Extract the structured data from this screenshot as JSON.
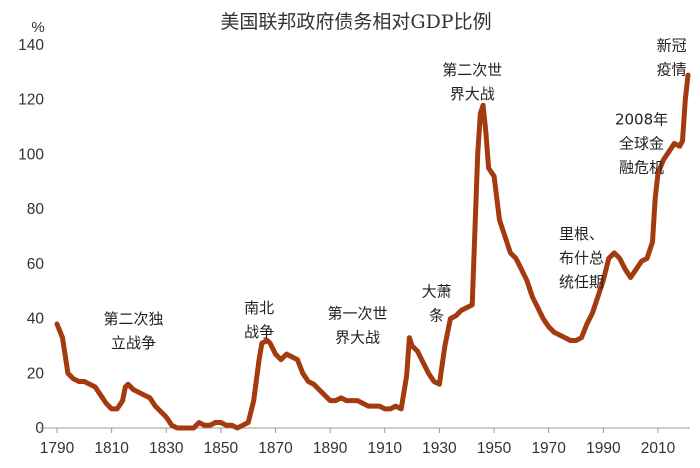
{
  "chart_data": {
    "type": "line",
    "title": "美国联邦政府债务相对GDP比例",
    "ylabel": "%",
    "xlabel": "",
    "xlim": [
      1790,
      2021
    ],
    "ylim": [
      0,
      140
    ],
    "xticks": [
      1790,
      1810,
      1830,
      1850,
      1870,
      1890,
      1910,
      1930,
      1950,
      1970,
      1990,
      2010
    ],
    "yticks": [
      0,
      20,
      40,
      60,
      80,
      100,
      120,
      140
    ],
    "grid": false,
    "legend": "none",
    "series": [
      {
        "color": "#a33a10",
        "points": [
          [
            1790,
            38
          ],
          [
            1792,
            33
          ],
          [
            1794,
            20
          ],
          [
            1796,
            18
          ],
          [
            1798,
            17
          ],
          [
            1800,
            17
          ],
          [
            1802,
            16
          ],
          [
            1804,
            15
          ],
          [
            1806,
            12
          ],
          [
            1808,
            9
          ],
          [
            1810,
            7
          ],
          [
            1812,
            7
          ],
          [
            1814,
            10
          ],
          [
            1815,
            15
          ],
          [
            1816,
            16
          ],
          [
            1818,
            14
          ],
          [
            1820,
            13
          ],
          [
            1822,
            12
          ],
          [
            1824,
            11
          ],
          [
            1826,
            8
          ],
          [
            1828,
            6
          ],
          [
            1830,
            4
          ],
          [
            1832,
            1
          ],
          [
            1834,
            0
          ],
          [
            1836,
            0
          ],
          [
            1838,
            0
          ],
          [
            1840,
            0
          ],
          [
            1842,
            2
          ],
          [
            1844,
            1
          ],
          [
            1846,
            1
          ],
          [
            1848,
            2
          ],
          [
            1850,
            2
          ],
          [
            1852,
            1
          ],
          [
            1854,
            1
          ],
          [
            1856,
            0
          ],
          [
            1858,
            1
          ],
          [
            1860,
            2
          ],
          [
            1862,
            10
          ],
          [
            1864,
            25
          ],
          [
            1865,
            31
          ],
          [
            1867,
            32
          ],
          [
            1868,
            31
          ],
          [
            1870,
            27
          ],
          [
            1872,
            25
          ],
          [
            1874,
            27
          ],
          [
            1876,
            26
          ],
          [
            1878,
            25
          ],
          [
            1880,
            20
          ],
          [
            1882,
            17
          ],
          [
            1884,
            16
          ],
          [
            1886,
            14
          ],
          [
            1888,
            12
          ],
          [
            1890,
            10
          ],
          [
            1892,
            10
          ],
          [
            1894,
            11
          ],
          [
            1896,
            10
          ],
          [
            1898,
            10
          ],
          [
            1900,
            10
          ],
          [
            1902,
            9
          ],
          [
            1904,
            8
          ],
          [
            1906,
            8
          ],
          [
            1908,
            8
          ],
          [
            1910,
            7
          ],
          [
            1912,
            7
          ],
          [
            1914,
            8
          ],
          [
            1916,
            7
          ],
          [
            1918,
            19
          ],
          [
            1919,
            33
          ],
          [
            1920,
            30
          ],
          [
            1922,
            28
          ],
          [
            1924,
            24
          ],
          [
            1926,
            20
          ],
          [
            1928,
            17
          ],
          [
            1930,
            16
          ],
          [
            1932,
            30
          ],
          [
            1934,
            40
          ],
          [
            1936,
            41
          ],
          [
            1938,
            43
          ],
          [
            1940,
            44
          ],
          [
            1942,
            45
          ],
          [
            1943,
            72
          ],
          [
            1944,
            100
          ],
          [
            1945,
            115
          ],
          [
            1946,
            118
          ],
          [
            1947,
            108
          ],
          [
            1948,
            95
          ],
          [
            1950,
            92
          ],
          [
            1952,
            76
          ],
          [
            1954,
            70
          ],
          [
            1956,
            64
          ],
          [
            1958,
            62
          ],
          [
            1960,
            58
          ],
          [
            1962,
            54
          ],
          [
            1964,
            48
          ],
          [
            1966,
            44
          ],
          [
            1968,
            40
          ],
          [
            1970,
            37
          ],
          [
            1972,
            35
          ],
          [
            1974,
            34
          ],
          [
            1976,
            33
          ],
          [
            1978,
            32
          ],
          [
            1980,
            32
          ],
          [
            1982,
            33
          ],
          [
            1984,
            38
          ],
          [
            1986,
            42
          ],
          [
            1988,
            48
          ],
          [
            1990,
            54
          ],
          [
            1992,
            62
          ],
          [
            1994,
            64
          ],
          [
            1996,
            62
          ],
          [
            1998,
            58
          ],
          [
            2000,
            55
          ],
          [
            2002,
            58
          ],
          [
            2004,
            61
          ],
          [
            2006,
            62
          ],
          [
            2008,
            68
          ],
          [
            2009,
            84
          ],
          [
            2010,
            93
          ],
          [
            2012,
            98
          ],
          [
            2014,
            101
          ],
          [
            2016,
            104
          ],
          [
            2018,
            103
          ],
          [
            2019,
            105
          ],
          [
            2020,
            120
          ],
          [
            2021,
            129
          ]
        ]
      }
    ],
    "annotations": [
      {
        "lines": [
          "第二次独",
          "立战争"
        ],
        "x": 1818,
        "y": 38
      },
      {
        "lines": [
          "南北",
          "战争"
        ],
        "x": 1864,
        "y": 42
      },
      {
        "lines": [
          "第一次世",
          "界大战"
        ],
        "x": 1900,
        "y": 40
      },
      {
        "lines": [
          "大萧",
          "条"
        ],
        "x": 1929,
        "y": 48
      },
      {
        "lines": [
          "第二次世",
          "界大战"
        ],
        "x": 1942,
        "y": 129
      },
      {
        "lines": [
          "里根、",
          "布什总",
          "统任期"
        ],
        "x": 1982,
        "y": 69
      },
      {
        "lines": [
          "2008年",
          "全球金",
          "融危机"
        ],
        "x": 2004,
        "y": 111
      },
      {
        "lines": [
          "新冠",
          "疫情"
        ],
        "x": 2015,
        "y": 138
      }
    ]
  }
}
